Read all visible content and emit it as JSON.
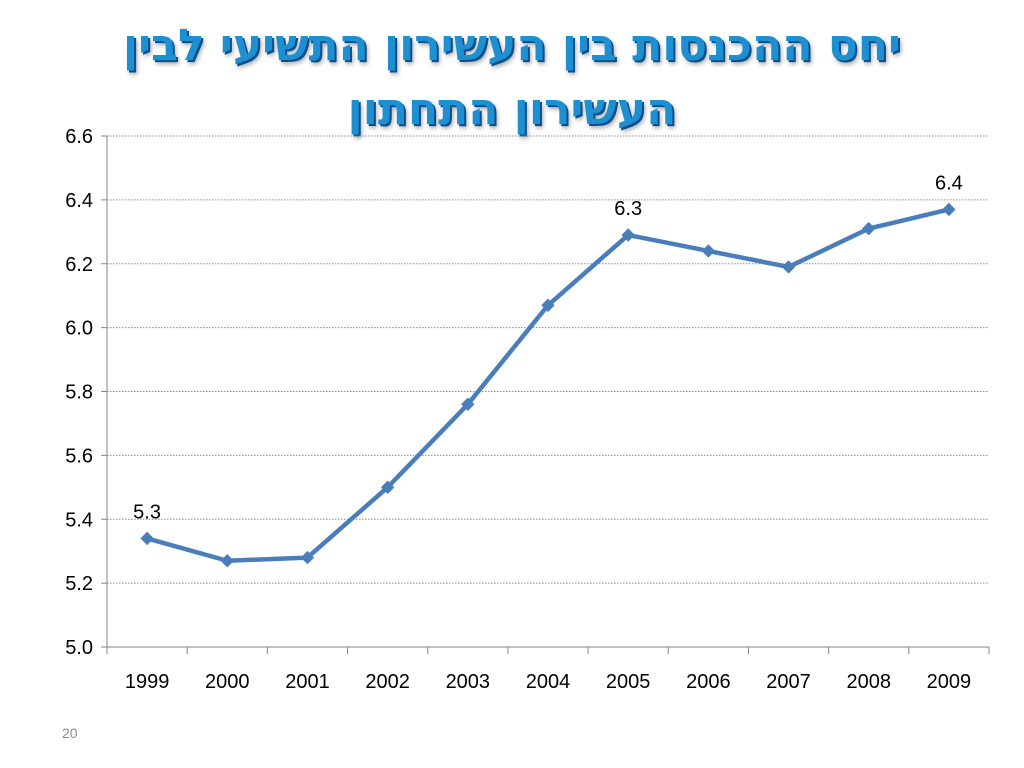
{
  "slide": {
    "title": "יחס ההכנסות בין העשירון התשיעי לבין העשירון התחתון",
    "page_number": "20"
  },
  "colors": {
    "title": "#1e8fd1",
    "title_shadow": "#0b4f8a",
    "line": "#4a7ebb",
    "grid": "#8c8c8c",
    "axis": "#868686"
  },
  "chart_data": {
    "type": "line",
    "categories": [
      "1999",
      "2000",
      "2001",
      "2002",
      "2003",
      "2004",
      "2005",
      "2006",
      "2007",
      "2008",
      "2009"
    ],
    "series": [
      {
        "values": [
          5.34,
          5.27,
          5.28,
          5.5,
          5.76,
          6.07,
          6.29,
          6.24,
          6.19,
          6.31,
          6.37
        ],
        "marker": "diamond"
      }
    ],
    "data_labels": [
      {
        "index": 0,
        "text": "5.3"
      },
      {
        "index": 6,
        "text": "6.3"
      },
      {
        "index": 10,
        "text": "6.4"
      }
    ],
    "y_ticks": [
      "5.0",
      "5.2",
      "5.4",
      "5.6",
      "5.8",
      "6.0",
      "6.2",
      "6.4",
      "6.6"
    ],
    "ylim": [
      5.0,
      6.6
    ],
    "grid": true,
    "legend": "none"
  }
}
